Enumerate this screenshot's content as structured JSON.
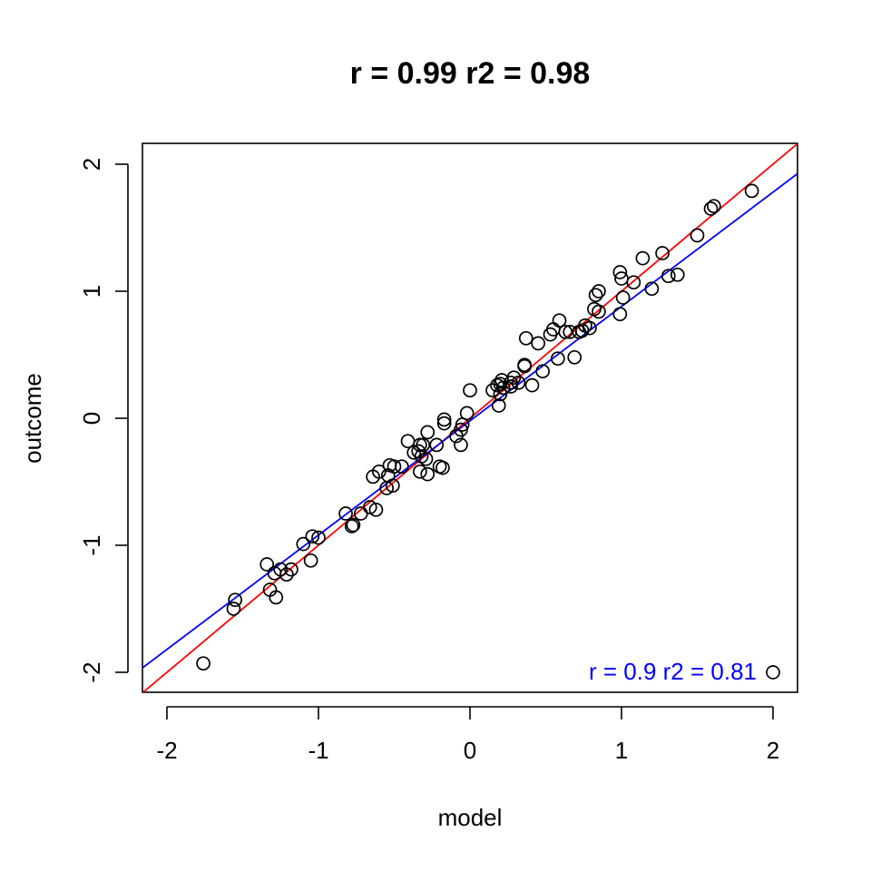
{
  "chart_data": {
    "type": "scatter",
    "title": "r = 0.99  r2 =  0.98",
    "xlabel": "model",
    "ylabel": "outcome",
    "xlim": [
      -2.16,
      2.16
    ],
    "ylim": [
      -2.16,
      2.16
    ],
    "x_ticks": [
      -2,
      -1,
      0,
      1,
      2
    ],
    "y_ticks": [
      -2,
      -1,
      0,
      1,
      2
    ],
    "x_tick_labels": [
      "-2",
      "-1",
      "0",
      "1",
      "2"
    ],
    "y_tick_labels": [
      "-2",
      "-1",
      "0",
      "1",
      "2"
    ],
    "annotation": "r = 0.9  r2 =  0.81",
    "annotation_color": "#0000ff",
    "grid": false,
    "points": [
      [
        1.86,
        1.79
      ],
      [
        1.61,
        1.67
      ],
      [
        1.59,
        1.65
      ],
      [
        1.5,
        1.44
      ],
      [
        1.27,
        1.3
      ],
      [
        1.14,
        1.26
      ],
      [
        1.37,
        1.13
      ],
      [
        1.31,
        1.12
      ],
      [
        1.08,
        1.07
      ],
      [
        1.2,
        1.02
      ],
      [
        0.99,
        1.15
      ],
      [
        1.0,
        1.1
      ],
      [
        1.01,
        0.95
      ],
      [
        0.99,
        0.82
      ],
      [
        0.85,
        1.0
      ],
      [
        0.83,
        0.97
      ],
      [
        0.82,
        0.86
      ],
      [
        0.85,
        0.84
      ],
      [
        0.79,
        0.71
      ],
      [
        0.76,
        0.73
      ],
      [
        0.74,
        0.69
      ],
      [
        0.72,
        0.68
      ],
      [
        0.69,
        0.48
      ],
      [
        0.66,
        0.68
      ],
      [
        0.63,
        0.68
      ],
      [
        0.59,
        0.77
      ],
      [
        0.55,
        0.7
      ],
      [
        0.53,
        0.66
      ],
      [
        0.58,
        0.47
      ],
      [
        0.45,
        0.59
      ],
      [
        0.37,
        0.63
      ],
      [
        0.48,
        0.37
      ],
      [
        0.36,
        0.42
      ],
      [
        0.36,
        0.41
      ],
      [
        0.41,
        0.26
      ],
      [
        0.32,
        0.28
      ],
      [
        0.29,
        0.32
      ],
      [
        0.27,
        0.28
      ],
      [
        0.27,
        0.25
      ],
      [
        0.21,
        0.3
      ],
      [
        0.2,
        0.27
      ],
      [
        0.22,
        0.24
      ],
      [
        0.2,
        0.19
      ],
      [
        0.18,
        0.26
      ],
      [
        0.15,
        0.22
      ],
      [
        0.19,
        0.1
      ],
      [
        0.0,
        0.22
      ],
      [
        -0.02,
        0.04
      ],
      [
        -0.05,
        -0.05
      ],
      [
        -0.06,
        -0.09
      ],
      [
        -0.06,
        -0.21
      ],
      [
        -0.09,
        -0.14
      ],
      [
        -0.17,
        -0.01
      ],
      [
        -0.17,
        -0.04
      ],
      [
        -0.22,
        -0.21
      ],
      [
        -0.18,
        -0.39
      ],
      [
        -0.2,
        -0.38
      ],
      [
        -0.28,
        -0.11
      ],
      [
        -0.31,
        -0.21
      ],
      [
        -0.33,
        -0.21
      ],
      [
        -0.34,
        -0.26
      ],
      [
        -0.32,
        -0.3
      ],
      [
        -0.29,
        -0.32
      ],
      [
        -0.28,
        -0.44
      ],
      [
        -0.33,
        -0.42
      ],
      [
        -0.37,
        -0.27
      ],
      [
        -0.41,
        -0.18
      ],
      [
        -0.45,
        -0.38
      ],
      [
        -0.5,
        -0.38
      ],
      [
        -0.51,
        -0.53
      ],
      [
        -0.53,
        -0.37
      ],
      [
        -0.54,
        -0.45
      ],
      [
        -0.55,
        -0.55
      ],
      [
        -0.6,
        -0.42
      ],
      [
        -0.64,
        -0.46
      ],
      [
        -0.62,
        -0.72
      ],
      [
        -0.66,
        -0.7
      ],
      [
        -0.72,
        -0.75
      ],
      [
        -0.77,
        -0.84
      ],
      [
        -0.78,
        -0.85
      ],
      [
        -0.82,
        -0.75
      ],
      [
        -1.0,
        -0.94
      ],
      [
        -1.04,
        -0.93
      ],
      [
        -1.05,
        -1.12
      ],
      [
        -1.1,
        -0.99
      ],
      [
        -1.18,
        -1.19
      ],
      [
        -1.21,
        -1.23
      ],
      [
        -1.25,
        -1.19
      ],
      [
        -1.29,
        -1.22
      ],
      [
        -1.32,
        -1.35
      ],
      [
        -1.34,
        -1.15
      ],
      [
        -1.28,
        -1.41
      ],
      [
        -1.55,
        -1.43
      ],
      [
        -1.56,
        -1.5
      ],
      [
        -1.76,
        -1.93
      ],
      [
        2.0,
        -2.0
      ]
    ],
    "lines": [
      {
        "color": "#ff0000",
        "intercept": 0.0,
        "slope": 1.0
      },
      {
        "color": "#0000ff",
        "intercept": -0.02,
        "slope": 0.9
      }
    ]
  }
}
